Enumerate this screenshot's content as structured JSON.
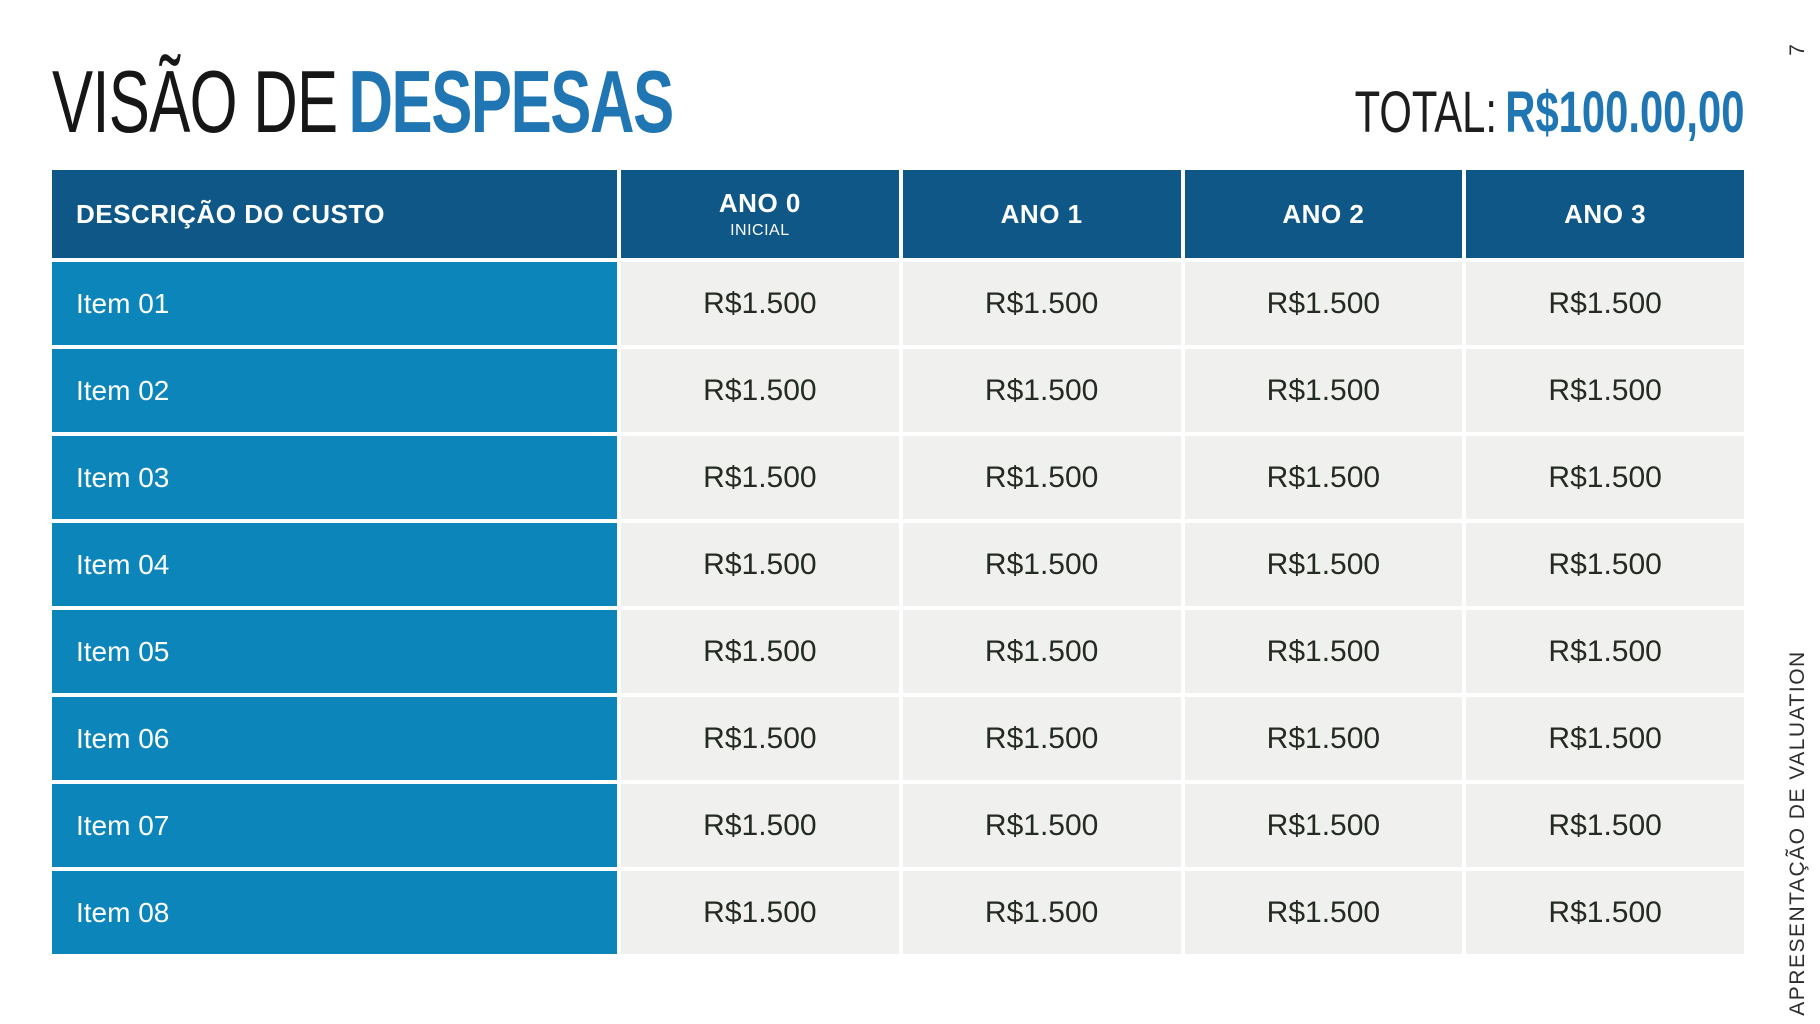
{
  "header": {
    "title_light": "VISÃO DE",
    "title_bold": "DESPESAS",
    "total_label": "TOTAL:",
    "total_value": "R$100.00,00"
  },
  "table": {
    "columns": [
      {
        "id": "descricao",
        "label": "DESCRIÇÃO DO CUSTO",
        "sublabel": ""
      },
      {
        "id": "ano-0",
        "label": "ANO 0",
        "sublabel": "INICIAL"
      },
      {
        "id": "ano-1",
        "label": "ANO 1",
        "sublabel": ""
      },
      {
        "id": "ano-2",
        "label": "ANO 2",
        "sublabel": ""
      },
      {
        "id": "ano-3",
        "label": "ANO 3",
        "sublabel": ""
      }
    ],
    "rows": [
      {
        "label": "Item 01",
        "values": [
          "R$1.500",
          "R$1.500",
          "R$1.500",
          "R$1.500"
        ]
      },
      {
        "label": "Item 02",
        "values": [
          "R$1.500",
          "R$1.500",
          "R$1.500",
          "R$1.500"
        ]
      },
      {
        "label": "Item 03",
        "values": [
          "R$1.500",
          "R$1.500",
          "R$1.500",
          "R$1.500"
        ]
      },
      {
        "label": "Item 04",
        "values": [
          "R$1.500",
          "R$1.500",
          "R$1.500",
          "R$1.500"
        ]
      },
      {
        "label": "Item 05",
        "values": [
          "R$1.500",
          "R$1.500",
          "R$1.500",
          "R$1.500"
        ]
      },
      {
        "label": "Item 06",
        "values": [
          "R$1.500",
          "R$1.500",
          "R$1.500",
          "R$1.500"
        ]
      },
      {
        "label": "Item 07",
        "values": [
          "R$1.500",
          "R$1.500",
          "R$1.500",
          "R$1.500"
        ]
      },
      {
        "label": "Item 08",
        "values": [
          "R$1.500",
          "R$1.500",
          "R$1.500",
          "R$1.500"
        ]
      }
    ]
  },
  "side": {
    "page_number": "7",
    "label": "APRESENTAÇÃO DE VALUATION"
  },
  "colors": {
    "header_blue": "#0e5786",
    "row_blue": "#0b85ba",
    "accent_blue": "#1f76b3",
    "cell_bg": "#f0f1ef",
    "value_text": "#242b22",
    "title_text": "#161616",
    "side_text": "#2d2d2d"
  }
}
